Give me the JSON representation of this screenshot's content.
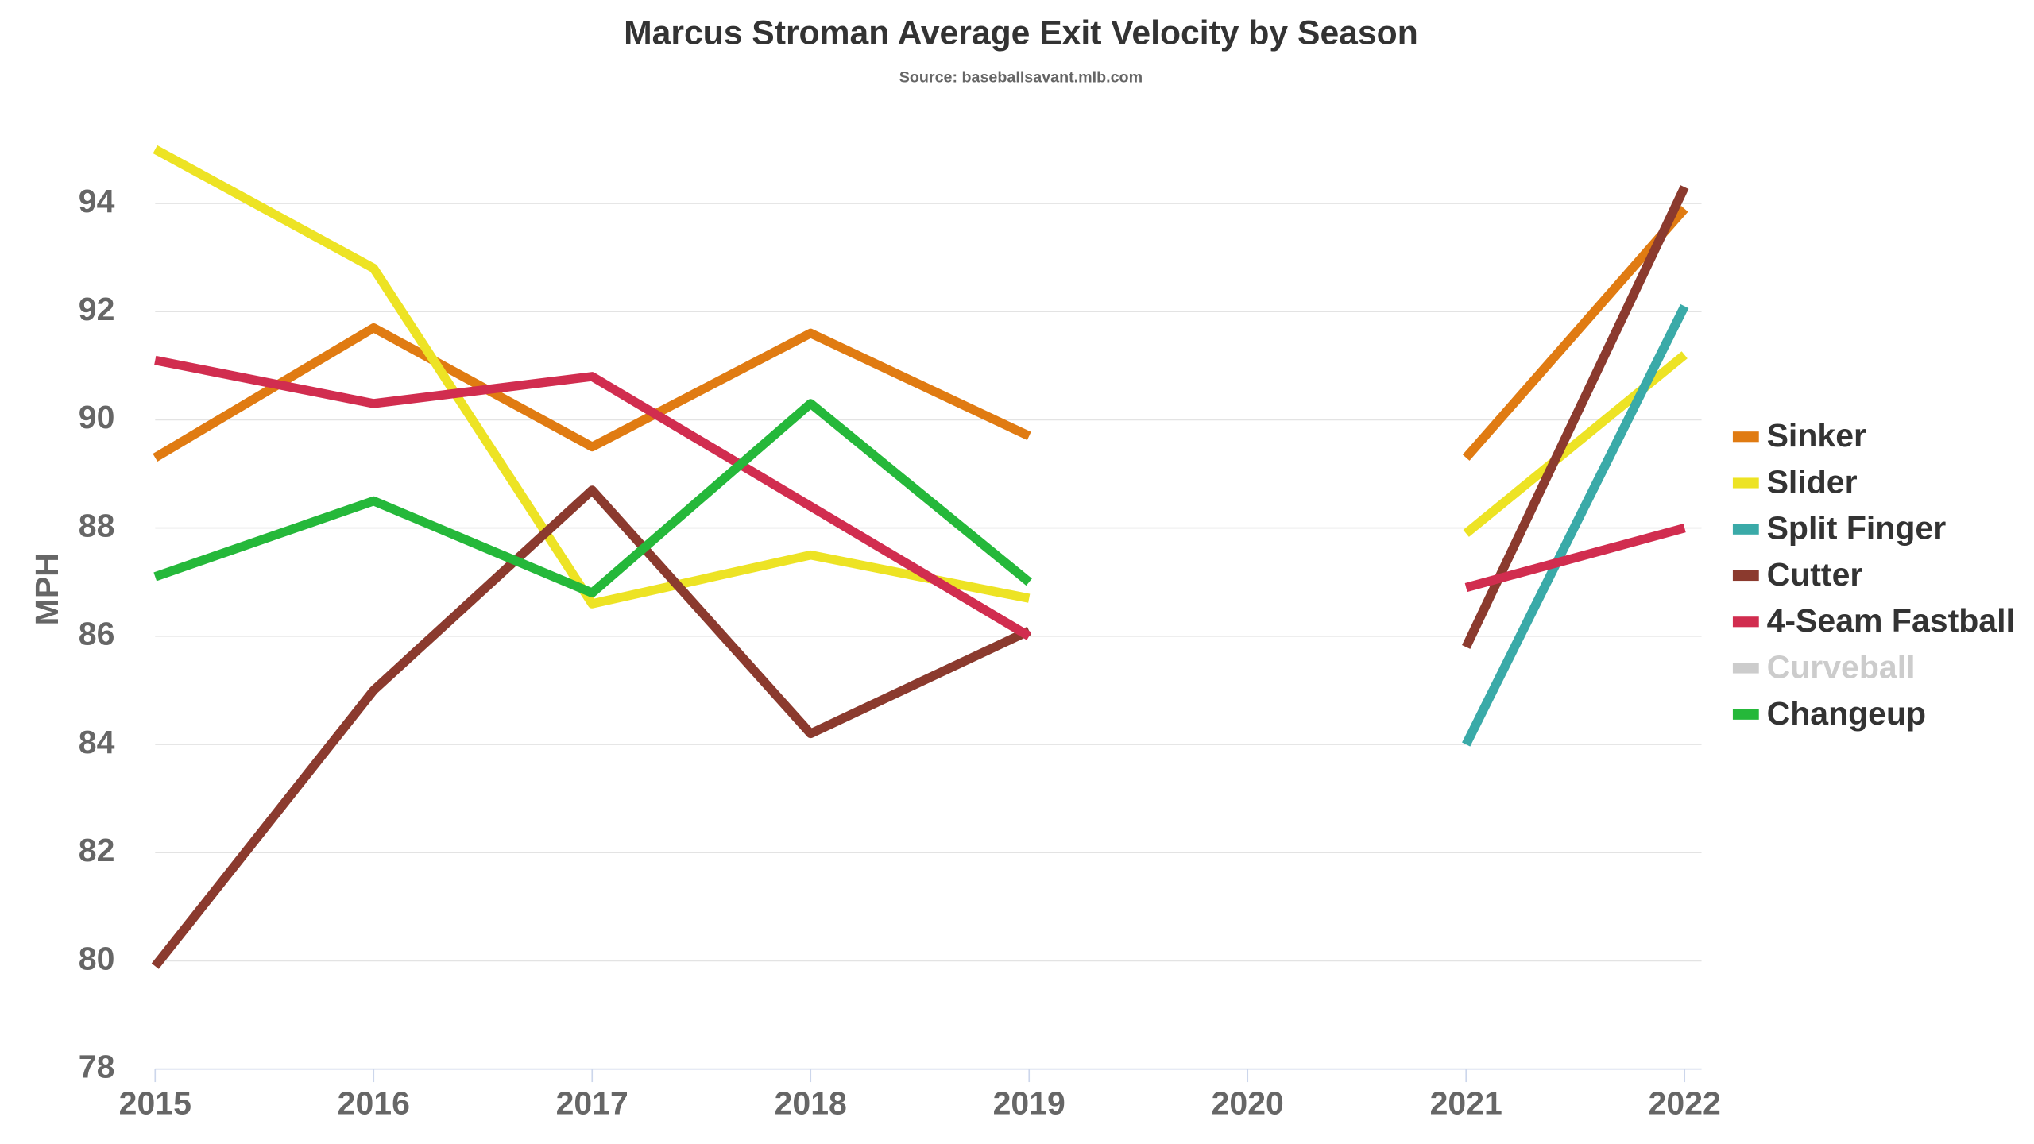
{
  "chart_data": {
    "type": "line",
    "title": "Marcus Stroman Average Exit Velocity by Season",
    "subtitle": "Source: baseballsavant.mlb.com",
    "y_label": "MPH",
    "x": [
      2015,
      2016,
      2017,
      2018,
      2019,
      2020,
      2021,
      2022
    ],
    "xlim": [
      2015,
      2022
    ],
    "xticks": [
      2015,
      2016,
      2017,
      2018,
      2019,
      2020,
      2021,
      2022
    ],
    "ylim": [
      78,
      96
    ],
    "yticks": [
      78,
      80,
      82,
      84,
      86,
      88,
      90,
      92,
      94
    ],
    "grid": true,
    "legend": "right",
    "series": [
      {
        "name": "Sinker",
        "color": "#e07b12",
        "values": [
          89.3,
          91.7,
          89.5,
          91.6,
          89.7,
          null,
          89.3,
          93.9
        ]
      },
      {
        "name": "Slider",
        "color": "#ede324",
        "values": [
          95.0,
          92.8,
          86.6,
          87.5,
          86.7,
          null,
          87.9,
          91.2
        ]
      },
      {
        "name": "Split Finger",
        "color": "#3aaaa8",
        "values": [
          null,
          null,
          null,
          null,
          null,
          null,
          84.0,
          92.1
        ]
      },
      {
        "name": "Cutter",
        "color": "#8b3a2e",
        "values": [
          79.9,
          85.0,
          88.7,
          84.2,
          86.1,
          null,
          85.8,
          94.3
        ]
      },
      {
        "name": "4-Seam Fastball",
        "color": "#d12d4f",
        "values": [
          91.1,
          90.3,
          90.8,
          88.4,
          86.0,
          null,
          86.9,
          88.0
        ]
      },
      {
        "name": "Curveball",
        "color": "#cccccc",
        "visible": false,
        "values": [
          null,
          null,
          null,
          null,
          null,
          null,
          null,
          null
        ]
      },
      {
        "name": "Changeup",
        "color": "#25b83a",
        "values": [
          87.1,
          88.5,
          86.8,
          90.3,
          87.0,
          null,
          null,
          null
        ]
      }
    ]
  }
}
